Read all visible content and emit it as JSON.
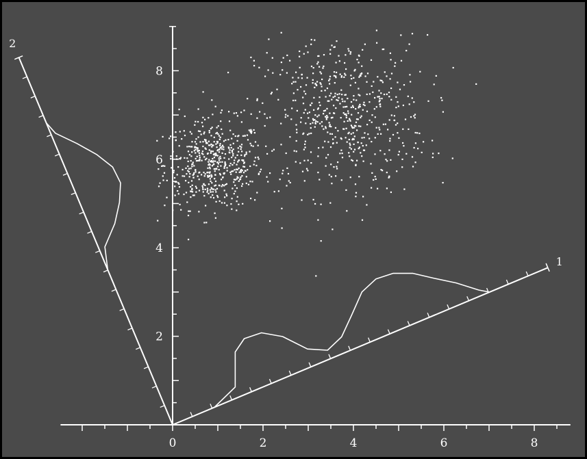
{
  "colors": {
    "background": "#4a4a4a",
    "ink": "#ffffff",
    "frame": "#000000"
  },
  "chart_data": {
    "type": "scatter",
    "title": "",
    "xlabel": "",
    "ylabel": "",
    "xlim": [
      -2.6,
      8.8
    ],
    "ylim": [
      0,
      9.0
    ],
    "x_ticks": [
      "0",
      "2",
      "4",
      "6",
      "8"
    ],
    "y_ticks": [
      "2",
      "4",
      "6",
      "8"
    ],
    "y_tick_6_partial": "6",
    "grid": false,
    "legend": "none",
    "clusters": [
      {
        "center": [
          0.9,
          5.9
        ],
        "spread": [
          0.55,
          0.5
        ],
        "count": 520
      },
      {
        "center": [
          3.7,
          7.0
        ],
        "spread": [
          0.95,
          0.9
        ],
        "count": 600
      }
    ],
    "projection_axes": [
      {
        "label": "1",
        "direction_end": [
          8.3,
          3.55
        ],
        "histogram": [
          {
            "t": 1.0,
            "h": 0.0
          },
          {
            "t": 1.6,
            "h": 0.3
          },
          {
            "t": 1.9,
            "h": 1.2
          },
          {
            "t": 2.2,
            "h": 1.5
          },
          {
            "t": 2.6,
            "h": 1.45
          },
          {
            "t": 3.0,
            "h": 1.1
          },
          {
            "t": 3.4,
            "h": 0.5
          },
          {
            "t": 3.8,
            "h": 0.3
          },
          {
            "t": 4.2,
            "h": 0.4
          },
          {
            "t": 4.6,
            "h": 0.9
          },
          {
            "t": 5.0,
            "h": 1.4
          },
          {
            "t": 5.4,
            "h": 1.6
          },
          {
            "t": 5.8,
            "h": 1.5
          },
          {
            "t": 6.2,
            "h": 1.3
          },
          {
            "t": 6.6,
            "h": 1.0
          },
          {
            "t": 7.0,
            "h": 0.6
          },
          {
            "t": 7.4,
            "h": 0.2
          },
          {
            "t": 7.6,
            "h": 0.0
          }
        ]
      },
      {
        "label": "2",
        "direction_end": [
          -3.4,
          8.3
        ],
        "histogram": [
          {
            "t": 3.8,
            "h": 0.0
          },
          {
            "t": 4.3,
            "h": 0.2
          },
          {
            "t": 4.7,
            "h": 0.6
          },
          {
            "t": 5.1,
            "h": 0.9
          },
          {
            "t": 5.5,
            "h": 1.15
          },
          {
            "t": 5.9,
            "h": 1.05
          },
          {
            "t": 6.3,
            "h": 0.85
          },
          {
            "t": 6.7,
            "h": 0.45
          },
          {
            "t": 7.1,
            "h": 0.15
          },
          {
            "t": 7.4,
            "h": 0.0
          }
        ]
      }
    ]
  }
}
